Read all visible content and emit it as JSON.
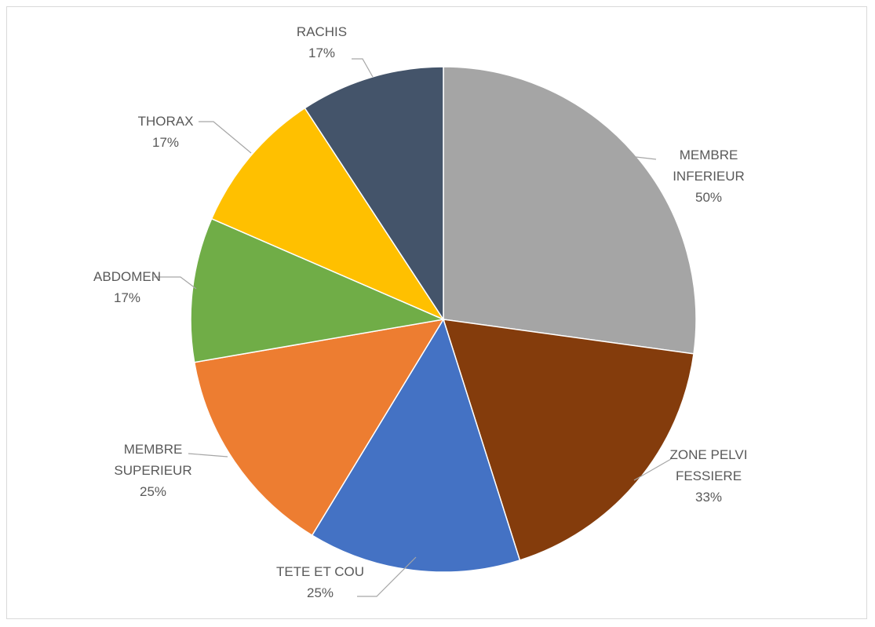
{
  "chart_data": {
    "type": "pie",
    "title": "",
    "slices": [
      {
        "label": "MEMBRE INFERIEUR",
        "label_lines": [
          "MEMBRE",
          "INFERIEUR"
        ],
        "value": 50,
        "percent_label": "50%",
        "color": "#a5a5a5"
      },
      {
        "label": "ZONE PELVI FESSIERE",
        "label_lines": [
          "ZONE PELVI",
          "FESSIERE"
        ],
        "value": 33,
        "percent_label": "33%",
        "color": "#843c0c"
      },
      {
        "label": "TETE ET COU",
        "label_lines": [
          "TETE ET COU"
        ],
        "value": 25,
        "percent_label": "25%",
        "color": "#4472c4"
      },
      {
        "label": "MEMBRE SUPERIEUR",
        "label_lines": [
          "MEMBRE",
          "SUPERIEUR"
        ],
        "value": 25,
        "percent_label": "25%",
        "color": "#ed7d31"
      },
      {
        "label": "ABDOMEN",
        "label_lines": [
          "ABDOMEN"
        ],
        "value": 17,
        "percent_label": "17%",
        "color": "#70ad47"
      },
      {
        "label": "THORAX",
        "label_lines": [
          "THORAX"
        ],
        "value": 17,
        "percent_label": "17%",
        "color": "#ffc000"
      },
      {
        "label": "RACHIS",
        "label_lines": [
          "RACHIS"
        ],
        "value": 17,
        "percent_label": "17%",
        "color": "#44546a"
      }
    ],
    "start": "12 o'clock",
    "direction": "clockwise",
    "legend": "none",
    "data_labels": "outside with leader lines"
  }
}
